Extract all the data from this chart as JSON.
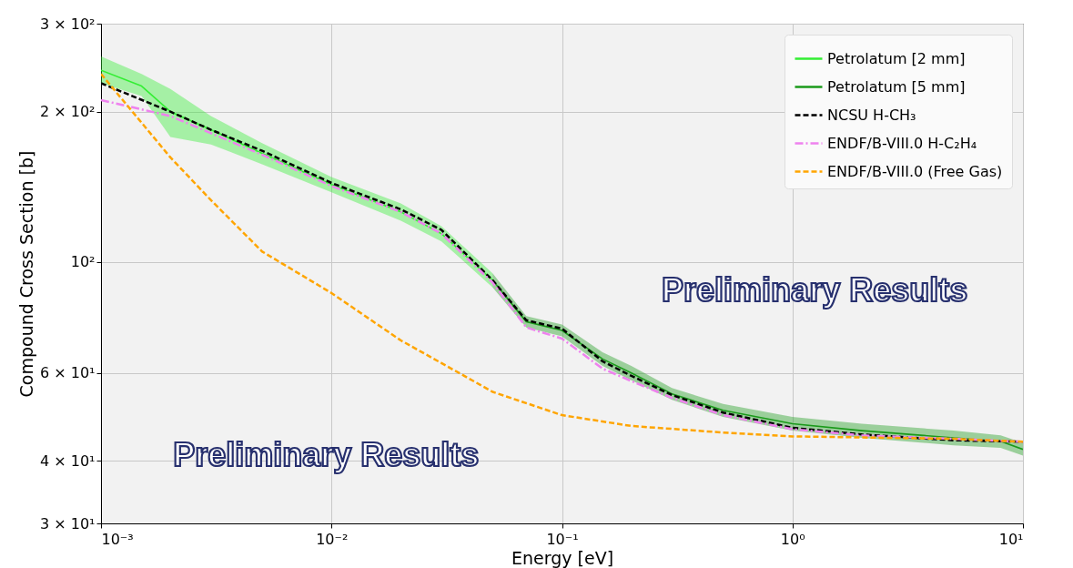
{
  "chart_data": {
    "type": "line",
    "xlabel": "Energy [eV]",
    "ylabel": "Compound Cross Section [b]",
    "log": "xy",
    "grid": true,
    "legend": "top right",
    "xlim": [
      0.001,
      10
    ],
    "xticks": [
      {
        "value": 0.001,
        "label": "10⁻³"
      },
      {
        "value": 0.01,
        "label": "10⁻²"
      },
      {
        "value": 0.1,
        "label": "10⁻¹"
      },
      {
        "value": 1,
        "label": "10⁰"
      },
      {
        "value": 10,
        "label": "10¹"
      }
    ],
    "ylim": [
      30,
      300
    ],
    "yticks": [
      {
        "value": 30,
        "label": "3 × 10¹"
      },
      {
        "value": 40,
        "label": "4 × 10¹"
      },
      {
        "value": 60,
        "label": "6 × 10¹"
      },
      {
        "value": 100,
        "label": "10²"
      },
      {
        "value": 200,
        "label": "2 × 10²"
      },
      {
        "value": 300,
        "label": "3 × 10²"
      }
    ],
    "annotations": [
      "Preliminary Results",
      "Preliminary Results"
    ],
    "series": [
      {
        "name": "Petrolatum [2 mm]",
        "color": "#33ee33",
        "line_style": "solid",
        "x": [
          0.001,
          0.0015,
          0.002,
          0.003,
          0.005,
          0.01,
          0.02,
          0.03,
          0.05
        ],
        "values": [
          242,
          225,
          200,
          184,
          165,
          143,
          126,
          114,
          92
        ],
        "lower": [
          228,
          215,
          178,
          172,
          157,
          138,
          121,
          110,
          89
        ],
        "upper": [
          258,
          238,
          222,
          196,
          173,
          148,
          131,
          118,
          95
        ]
      },
      {
        "name": "Petrolatum [5 mm]",
        "color": "#1a9a1a",
        "line_style": "solid",
        "x": [
          0.05,
          0.07,
          0.1,
          0.15,
          0.2,
          0.3,
          0.5,
          1,
          2,
          5,
          8,
          10
        ],
        "values": [
          92,
          76,
          73,
          64,
          60,
          54.5,
          50.5,
          47.5,
          46,
          44.5,
          43.8,
          42.2
        ],
        "lower": [
          89,
          74,
          71,
          62,
          58,
          53,
          49,
          46,
          44.5,
          43,
          42.5,
          41
        ],
        "upper": [
          95,
          78,
          75,
          66,
          62,
          56,
          52,
          49,
          47.5,
          46,
          45,
          43.5
        ]
      },
      {
        "name": "NCSU H-CH₃",
        "color": "#000000",
        "line_style": "dashed",
        "x": [
          0.001,
          0.002,
          0.003,
          0.005,
          0.01,
          0.02,
          0.03,
          0.05,
          0.07,
          0.1,
          0.15,
          0.2,
          0.3,
          0.5,
          1,
          2,
          5,
          10
        ],
        "values": [
          228,
          200,
          184,
          167,
          144,
          127.5,
          116,
          92,
          76.5,
          73.6,
          63.3,
          59.2,
          54.2,
          50,
          46.6,
          45.2,
          44,
          43.7
        ]
      },
      {
        "name": "ENDF/B-VIII.0  H-C₂H₄",
        "color": "#ee82ee",
        "line_style": "dashdot",
        "x": [
          0.001,
          0.002,
          0.005,
          0.01,
          0.02,
          0.03,
          0.05,
          0.07,
          0.1,
          0.15,
          0.2,
          0.3,
          0.5,
          1,
          2,
          5,
          10
        ],
        "values": [
          211,
          196,
          164,
          142,
          126,
          114,
          91,
          74,
          70.3,
          61.2,
          57.8,
          53.5,
          49.4,
          46.3,
          45,
          44.3,
          43.7
        ]
      },
      {
        "name": "ENDF/B-VIII.0 (Free Gas)",
        "color": "#ffa500",
        "line_style": "dashed",
        "x": [
          0.001,
          0.002,
          0.003,
          0.005,
          0.01,
          0.02,
          0.03,
          0.05,
          0.1,
          0.2,
          0.5,
          1,
          5,
          10
        ],
        "values": [
          238,
          162,
          133,
          105,
          86.7,
          69.7,
          62.8,
          55,
          49.4,
          47,
          45.6,
          44.8,
          44.3,
          43.7
        ]
      }
    ]
  }
}
